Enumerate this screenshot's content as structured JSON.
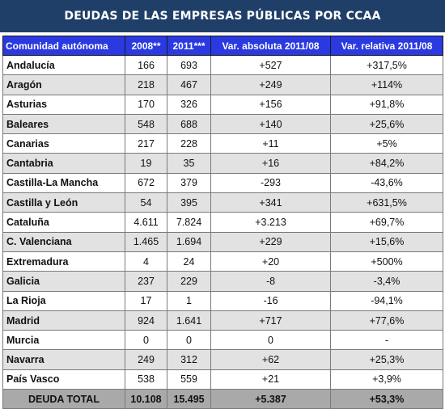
{
  "title": "DEUDAS DE LAS EMPRESAS PÚBLICAS POR CCAA",
  "chart_data": {
    "type": "table",
    "columns": [
      "Comunidad autónoma",
      "2008**",
      "2011***",
      "Var. absoluta 2011/08",
      "Var. relativa 2011/08"
    ],
    "rows": [
      [
        "Andalucía",
        "166",
        "693",
        "+527",
        "+317,5%"
      ],
      [
        "Aragón",
        "218",
        "467",
        "+249",
        "+114%"
      ],
      [
        "Asturias",
        "170",
        "326",
        "+156",
        "+91,8%"
      ],
      [
        "Baleares",
        "548",
        "688",
        "+140",
        "+25,6%"
      ],
      [
        "Canarias",
        "217",
        "228",
        "+11",
        "+5%"
      ],
      [
        "Cantabria",
        "19",
        "35",
        "+16",
        "+84,2%"
      ],
      [
        "Castilla-La Mancha",
        "672",
        "379",
        "-293",
        "-43,6%"
      ],
      [
        "Castilla y León",
        "54",
        "395",
        "+341",
        "+631,5%"
      ],
      [
        "Cataluña",
        "4.611",
        "7.824",
        "+3.213",
        "+69,7%"
      ],
      [
        "C. Valenciana",
        "1.465",
        "1.694",
        "+229",
        "+15,6%"
      ],
      [
        "Extremadura",
        "4",
        "24",
        "+20",
        "+500%"
      ],
      [
        "Galicia",
        "237",
        "229",
        "-8",
        "-3,4%"
      ],
      [
        "La Rioja",
        "17",
        "1",
        "-16",
        "-94,1%"
      ],
      [
        "Madrid",
        "924",
        "1.641",
        "+717",
        "+77,6%"
      ],
      [
        "Murcia",
        "0",
        "0",
        "0",
        "-"
      ],
      [
        "Navarra",
        "249",
        "312",
        "+62",
        "+25,3%"
      ],
      [
        "País Vasco",
        "538",
        "559",
        "+21",
        "+3,9%"
      ]
    ],
    "total": [
      "DEUDA TOTAL",
      "10.108",
      "15.495",
      "+5.387",
      "+53,3%"
    ]
  },
  "colors": {
    "title_background": "#1f3f68",
    "header_background": "#2a39e0",
    "row_alt_background": "#e2e2e2",
    "total_background": "#a9a9a9"
  }
}
